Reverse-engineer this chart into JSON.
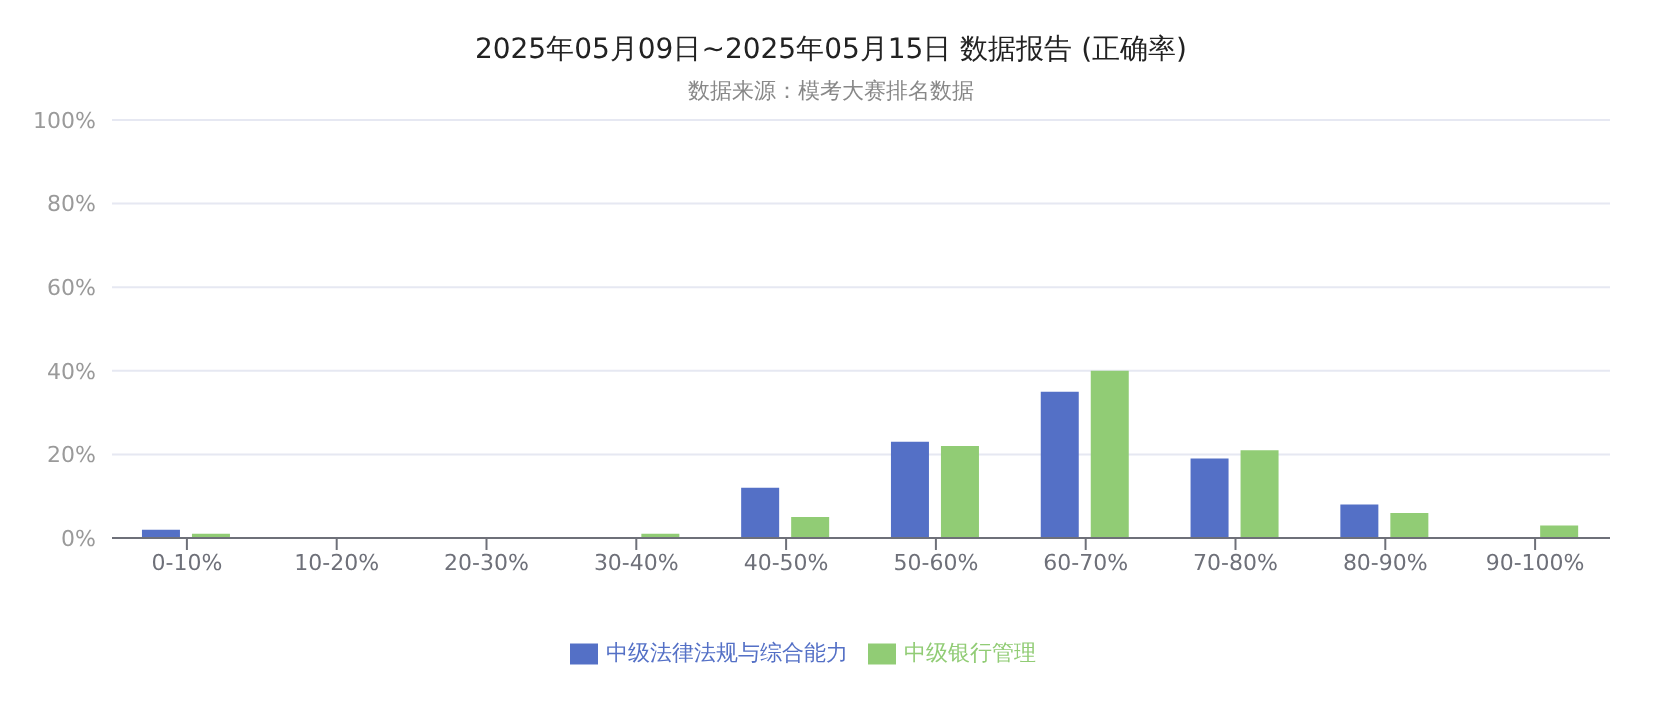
{
  "chart_data": {
    "type": "bar",
    "title": "2025年05月09日~2025年05月15日 数据报告 (正确率)",
    "subtitle": "数据来源：模考大赛排名数据",
    "categories": [
      "0-10%",
      "10-20%",
      "20-30%",
      "30-40%",
      "40-50%",
      "50-60%",
      "60-70%",
      "70-80%",
      "80-90%",
      "90-100%"
    ],
    "series": [
      {
        "name": "中级法律法规与综合能力",
        "color": "#5470c6",
        "values": [
          2,
          0,
          0,
          0,
          12,
          23,
          35,
          19,
          8,
          0
        ]
      },
      {
        "name": "中级银行管理",
        "color": "#91cc75",
        "values": [
          1,
          0,
          0,
          1,
          5,
          22,
          40,
          21,
          6,
          3
        ]
      }
    ],
    "ylim": [
      0,
      100
    ],
    "yticks": [
      {
        "value": 0,
        "label": "0%"
      },
      {
        "value": 20,
        "label": "20%"
      },
      {
        "value": 40,
        "label": "40%"
      },
      {
        "value": 60,
        "label": "60%"
      },
      {
        "value": 80,
        "label": "80%"
      },
      {
        "value": 100,
        "label": "100%"
      }
    ],
    "grid": "y",
    "legend": "bottom"
  }
}
